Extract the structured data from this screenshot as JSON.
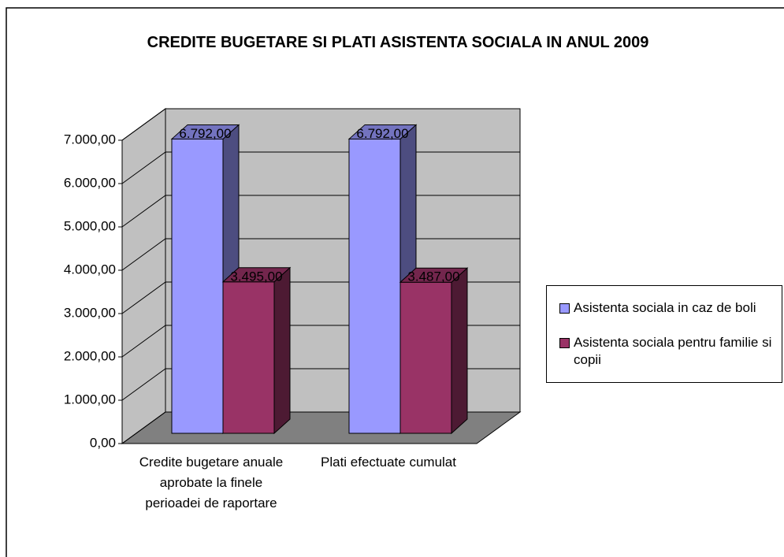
{
  "chart_data": {
    "type": "bar3d",
    "title": "CREDITE BUGETARE SI PLATI ASISTENTA SOCIALA IN ANUL 2009",
    "categories": [
      "Credite bugetare anuale aprobate la finele perioadei de raportare",
      "Plati efectuate cumulat"
    ],
    "series": [
      {
        "name": "Asistenta sociala in caz de boli",
        "color": "#9999ff",
        "values": [
          6792,
          6792
        ],
        "value_labels": [
          "6.792,00",
          "6.792,00"
        ]
      },
      {
        "name": "Asistenta sociala pentru familie si copii",
        "color": "#993366",
        "values": [
          3495,
          3487
        ],
        "value_labels": [
          "3.495,00",
          "3.487,00"
        ]
      }
    ],
    "ylim": [
      0,
      7000
    ],
    "yticks": [
      {
        "value": 0,
        "label": "0,00"
      },
      {
        "value": 1000,
        "label": "1.000,00"
      },
      {
        "value": 2000,
        "label": "2.000,00"
      },
      {
        "value": 3000,
        "label": "3.000,00"
      },
      {
        "value": 4000,
        "label": "4.000,00"
      },
      {
        "value": 5000,
        "label": "5.000,00"
      },
      {
        "value": 6000,
        "label": "6.000,00"
      },
      {
        "value": 7000,
        "label": "7.000,00"
      }
    ],
    "grid": true,
    "legend": "right"
  }
}
